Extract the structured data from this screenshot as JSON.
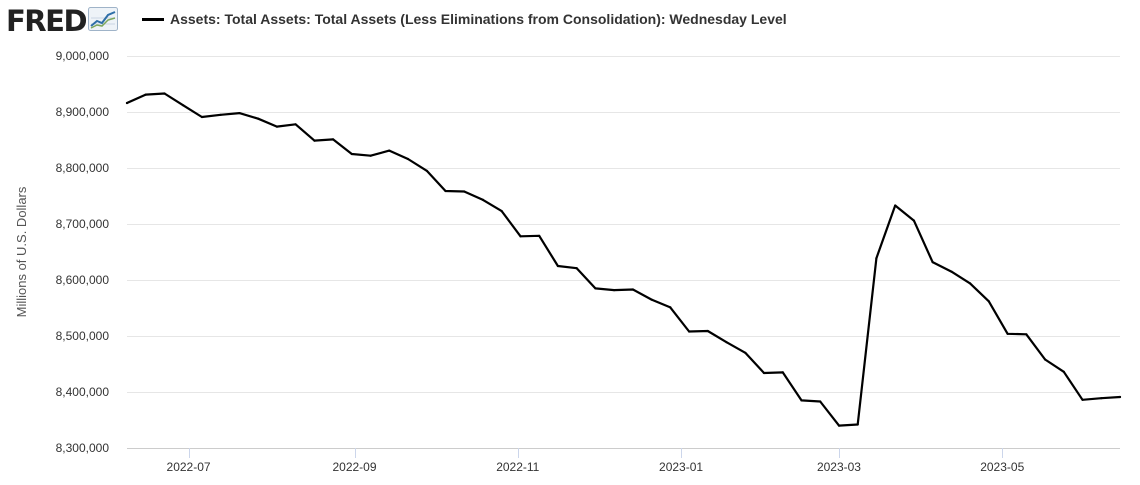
{
  "header": {
    "logo_text": "FRED",
    "logo_icon": "line-graph-icon",
    "legend_label": "Assets: Total Assets: Total Assets (Less Eliminations from Consolidation): Wednesday Level"
  },
  "colors": {
    "series": "#000000",
    "grid": "#e6e6e6",
    "axis": "#cccccc",
    "tick_mark": "#ccd6eb"
  },
  "chart_data": {
    "type": "line",
    "title": "",
    "xlabel": "",
    "ylabel": "Millions of U.S. Dollars",
    "ylim": [
      8300000,
      9000000
    ],
    "xlim": [
      "2022-06-08",
      "2023-06-14"
    ],
    "grid": true,
    "legend": "top-left",
    "y_ticks": [
      8300000,
      8400000,
      8500000,
      8600000,
      8700000,
      8800000,
      8900000,
      9000000
    ],
    "y_tick_labels": [
      "8,300,000",
      "8,400,000",
      "8,500,000",
      "8,600,000",
      "8,700,000",
      "8,800,000",
      "8,900,000",
      "9,000,000"
    ],
    "x_ticks": [
      "2022-07-01",
      "2022-09-01",
      "2022-11-01",
      "2023-01-01",
      "2023-03-01",
      "2023-05-01"
    ],
    "x_tick_labels": [
      "2022-07",
      "2022-09",
      "2022-11",
      "2023-01",
      "2023-03",
      "2023-05"
    ],
    "series": [
      {
        "name": "Assets: Total Assets: Total Assets (Less Eliminations from Consolidation): Wednesday Level",
        "x": [
          "2022-06-08",
          "2022-06-15",
          "2022-06-22",
          "2022-06-29",
          "2022-07-06",
          "2022-07-13",
          "2022-07-20",
          "2022-07-27",
          "2022-08-03",
          "2022-08-10",
          "2022-08-17",
          "2022-08-24",
          "2022-08-31",
          "2022-09-07",
          "2022-09-14",
          "2022-09-21",
          "2022-09-28",
          "2022-10-05",
          "2022-10-12",
          "2022-10-19",
          "2022-10-26",
          "2022-11-02",
          "2022-11-09",
          "2022-11-16",
          "2022-11-23",
          "2022-11-30",
          "2022-12-07",
          "2022-12-14",
          "2022-12-21",
          "2022-12-28",
          "2023-01-04",
          "2023-01-11",
          "2023-01-18",
          "2023-01-25",
          "2023-02-01",
          "2023-02-08",
          "2023-02-15",
          "2023-02-22",
          "2023-03-01",
          "2023-03-08",
          "2023-03-15",
          "2023-03-22",
          "2023-03-29",
          "2023-04-05",
          "2023-04-12",
          "2023-04-19",
          "2023-04-26",
          "2023-05-03",
          "2023-05-10",
          "2023-05-17",
          "2023-05-24",
          "2023-05-31",
          "2023-06-07",
          "2023-06-14"
        ],
        "values": [
          8916000,
          8931000,
          8933000,
          8912000,
          8891000,
          8895000,
          8898000,
          8888000,
          8874000,
          8878000,
          8849000,
          8851000,
          8825000,
          8822000,
          8831000,
          8816000,
          8795000,
          8759000,
          8758000,
          8743000,
          8723000,
          8678000,
          8679000,
          8625000,
          8621000,
          8585000,
          8582000,
          8583000,
          8565000,
          8551000,
          8508000,
          8509000,
          8489000,
          8470000,
          8434000,
          8435000,
          8385000,
          8383000,
          8340000,
          8342000,
          8639000,
          8733000,
          8706000,
          8632000,
          8615000,
          8594000,
          8562000,
          8504000,
          8503000,
          8458000,
          8436000,
          8386000,
          8389000,
          8391000
        ]
      }
    ]
  }
}
